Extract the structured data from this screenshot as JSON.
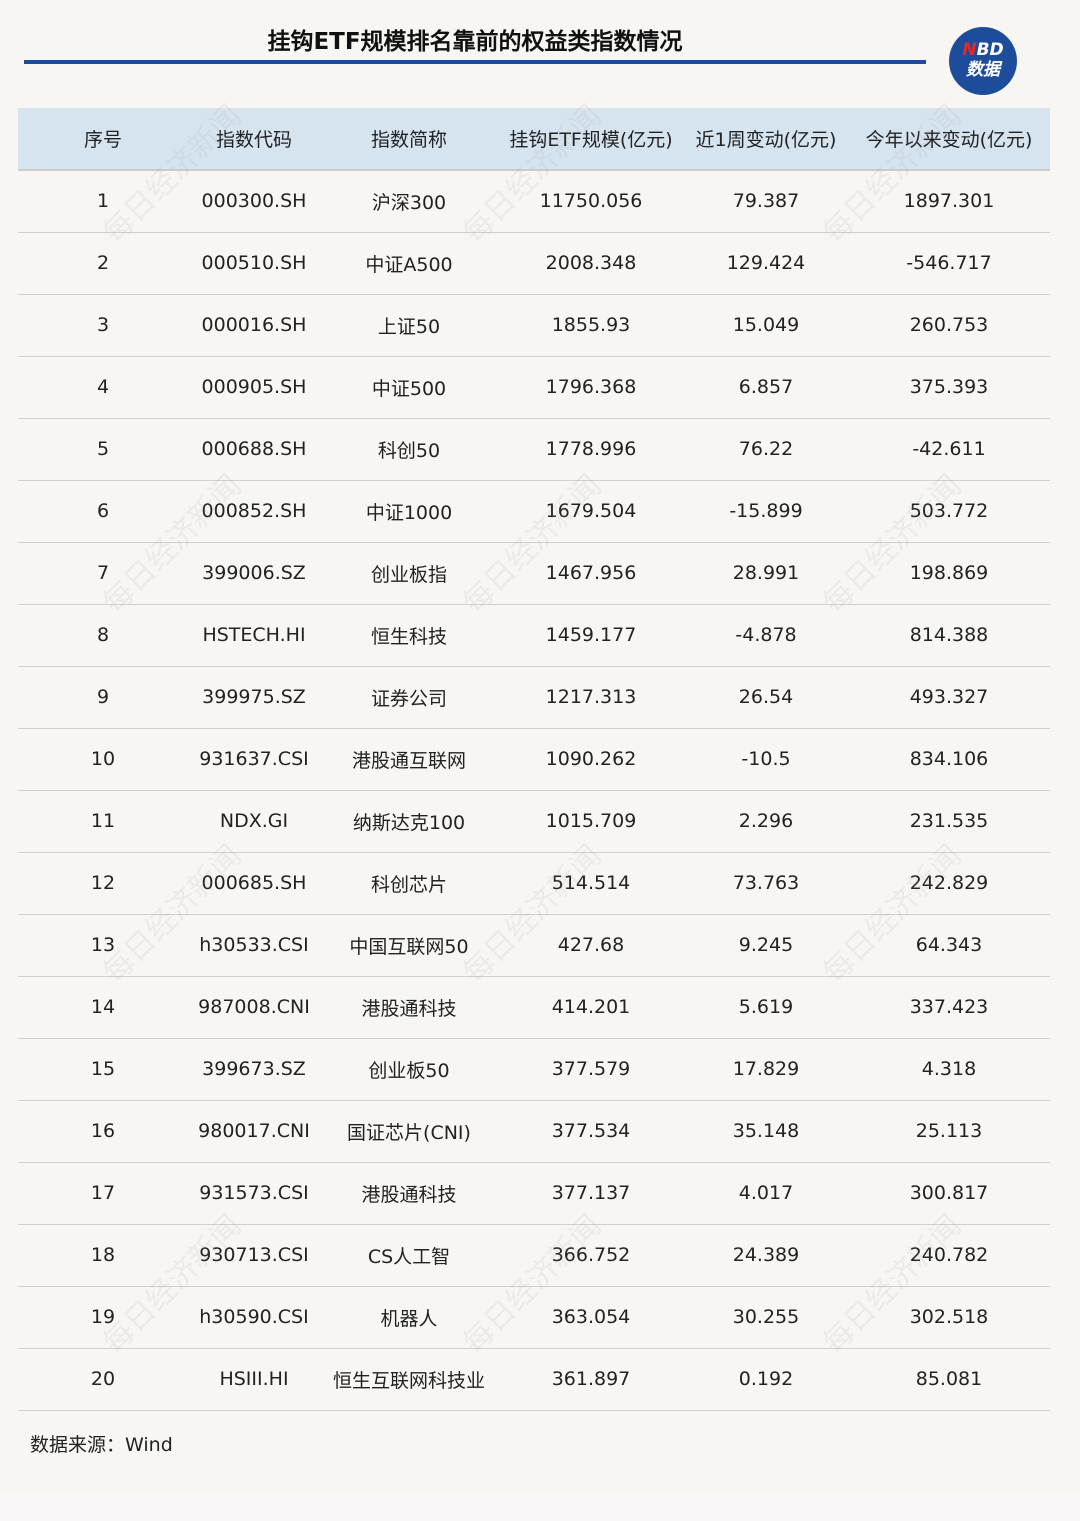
{
  "title": "挂钩ETF规模排名靠前的权益类指数情况",
  "logo": {
    "line1_n": "N",
    "line1_rest": "BD",
    "line2": "数据"
  },
  "watermark": "每日经济新闻",
  "colors": {
    "accent": "#1d4d9a",
    "header_bg": "#d6e4f0",
    "background": "#f8f6f2"
  },
  "table": {
    "headers": [
      "序号",
      "指数代码",
      "指数简称",
      "挂钩ETF规模(亿元)",
      "近1周变动(亿元)",
      "今年以来变动(亿元)"
    ],
    "rows": [
      [
        "1",
        "000300.SH",
        "沪深300",
        "11750.056",
        "79.387",
        "1897.301"
      ],
      [
        "2",
        "000510.SH",
        "中证A500",
        "2008.348",
        "129.424",
        "-546.717"
      ],
      [
        "3",
        "000016.SH",
        "上证50",
        "1855.93",
        "15.049",
        "260.753"
      ],
      [
        "4",
        "000905.SH",
        "中证500",
        "1796.368",
        "6.857",
        "375.393"
      ],
      [
        "5",
        "000688.SH",
        "科创50",
        "1778.996",
        "76.22",
        "-42.611"
      ],
      [
        "6",
        "000852.SH",
        "中证1000",
        "1679.504",
        "-15.899",
        "503.772"
      ],
      [
        "7",
        "399006.SZ",
        "创业板指",
        "1467.956",
        "28.991",
        "198.869"
      ],
      [
        "8",
        "HSTECH.HI",
        "恒生科技",
        "1459.177",
        "-4.878",
        "814.388"
      ],
      [
        "9",
        "399975.SZ",
        "证券公司",
        "1217.313",
        "26.54",
        "493.327"
      ],
      [
        "10",
        "931637.CSI",
        "港股通互联网",
        "1090.262",
        "-10.5",
        "834.106"
      ],
      [
        "11",
        "NDX.GI",
        "纳斯达克100",
        "1015.709",
        "2.296",
        "231.535"
      ],
      [
        "12",
        "000685.SH",
        "科创芯片",
        "514.514",
        "73.763",
        "242.829"
      ],
      [
        "13",
        "h30533.CSI",
        "中国互联网50",
        "427.68",
        "9.245",
        "64.343"
      ],
      [
        "14",
        "987008.CNI",
        "港股通科技",
        "414.201",
        "5.619",
        "337.423"
      ],
      [
        "15",
        "399673.SZ",
        "创业板50",
        "377.579",
        "17.829",
        "4.318"
      ],
      [
        "16",
        "980017.CNI",
        "国证芯片(CNI)",
        "377.534",
        "35.148",
        "25.113"
      ],
      [
        "17",
        "931573.CSI",
        "港股通科技",
        "377.137",
        "4.017",
        "300.817"
      ],
      [
        "18",
        "930713.CSI",
        "CS人工智",
        "366.752",
        "24.389",
        "240.782"
      ],
      [
        "19",
        "h30590.CSI",
        "机器人",
        "363.054",
        "30.255",
        "302.518"
      ],
      [
        "20",
        "HSIII.HI",
        "恒生互联网科技业",
        "361.897",
        "0.192",
        "85.081"
      ]
    ]
  },
  "source": "数据来源：Wind"
}
